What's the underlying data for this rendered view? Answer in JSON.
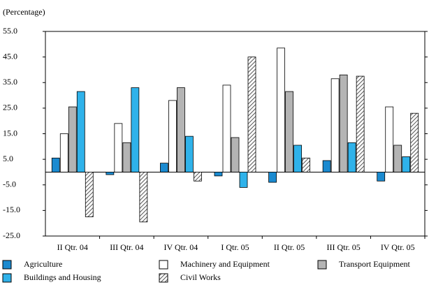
{
  "chart_data": {
    "type": "bar",
    "y_label": "(Percentage)",
    "categories": [
      "II Qtr. 04",
      "III Qtr. 04",
      "IV Qtr. 04",
      "I Qtr. 05",
      "II Qtr. 05",
      "III Qtr. 05",
      "IV Qtr. 05"
    ],
    "series": [
      {
        "name": "Agriculture",
        "color": "#1a8ad0",
        "values": [
          5.5,
          -1,
          3.5,
          -1.5,
          -4,
          4.5,
          -3.5
        ]
      },
      {
        "name": "Machinery and Equipment",
        "color": "#ffffff",
        "values": [
          15,
          19,
          28,
          34,
          48.5,
          36.5,
          25.5
        ]
      },
      {
        "name": "Transport Equipment",
        "color": "#b4b4b4",
        "values": [
          25.5,
          11.5,
          33,
          13.5,
          31.5,
          38,
          10.5
        ]
      },
      {
        "name": "Buildings and Housing",
        "color": "#2fb2ea",
        "values": [
          31.5,
          33,
          14,
          -6,
          10.5,
          11.5,
          6
        ]
      },
      {
        "name": "Civil Works",
        "color": "#ffffff",
        "pattern": "hatch",
        "values": [
          -17.5,
          -19.5,
          -3.5,
          45,
          5.5,
          37.5,
          23
        ]
      }
    ],
    "ylim": [
      -25,
      55
    ],
    "yticks": [
      {
        "value": -25,
        "label": "-25.0"
      },
      {
        "value": -15,
        "label": "-15.0"
      },
      {
        "value": -5,
        "label": "-5.0"
      },
      {
        "value": 5,
        "label": "5.0"
      },
      {
        "value": 15,
        "label": "15.0"
      },
      {
        "value": 25,
        "label": "25.0"
      },
      {
        "value": 35,
        "label": "35.0"
      },
      {
        "value": 45,
        "label": "45.0"
      },
      {
        "value": 55,
        "label": "55.0"
      }
    ]
  }
}
